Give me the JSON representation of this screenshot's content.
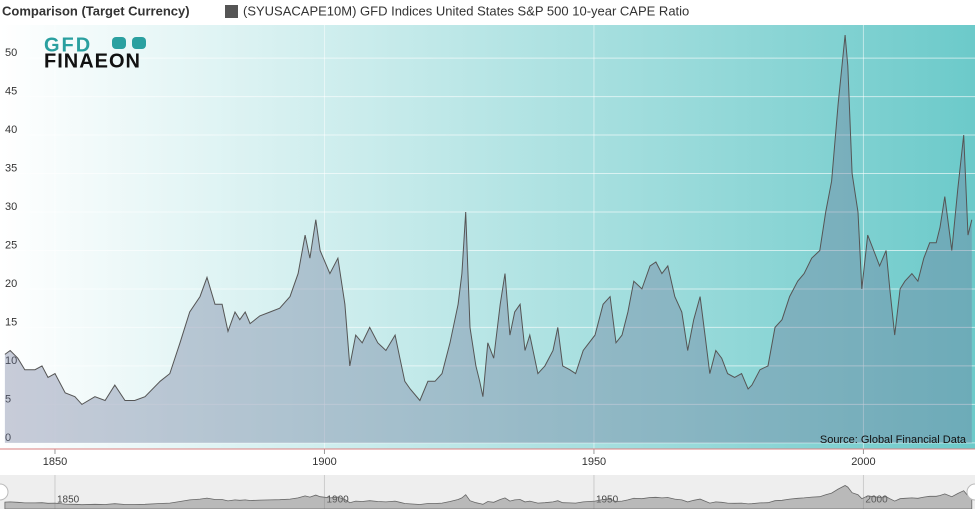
{
  "chart_data": {
    "type": "area",
    "title": "Comparison (Target Currency)",
    "source": "Source: Global Financial Data",
    "logo_top": "GFD",
    "logo_bottom": "FINAEON",
    "x": [
      1840.7,
      1841.7,
      1843.1,
      1844.4,
      1846.3,
      1847.6,
      1848.7,
      1850.0,
      1851.9,
      1853.7,
      1855.0,
      1857.4,
      1859.3,
      1861.1,
      1863.0,
      1864.8,
      1866.7,
      1869.5,
      1871.3,
      1873.2,
      1875.0,
      1876.9,
      1878.2,
      1879.7,
      1881.0,
      1882.1,
      1883.4,
      1884.3,
      1885.3,
      1886.2,
      1888.0,
      1889.9,
      1891.7,
      1893.6,
      1895.1,
      1896.4,
      1897.3,
      1898.4,
      1899.2,
      1901.0,
      1902.5,
      1903.8,
      1904.7,
      1905.8,
      1907.0,
      1908.4,
      1909.9,
      1911.4,
      1913.1,
      1914.0,
      1914.9,
      1915.9,
      1917.7,
      1919.2,
      1920.5,
      1921.8,
      1923.3,
      1924.8,
      1925.5,
      1926.2,
      1927.0,
      1928.1,
      1928.8,
      1929.4,
      1930.3,
      1931.4,
      1932.6,
      1933.5,
      1934.4,
      1935.3,
      1936.3,
      1937.2,
      1938.1,
      1939.6,
      1940.9,
      1942.4,
      1943.3,
      1944.2,
      1945.5,
      1946.6,
      1948.0,
      1950.2,
      1951.7,
      1953.0,
      1954.1,
      1955.2,
      1956.3,
      1957.4,
      1958.9,
      1960.4,
      1961.5,
      1962.6,
      1963.7,
      1965.0,
      1966.3,
      1967.4,
      1968.5,
      1969.7,
      1970.6,
      1971.5,
      1972.6,
      1973.7,
      1974.8,
      1976.1,
      1977.4,
      1978.6,
      1979.3,
      1980.8,
      1982.3,
      1983.6,
      1984.9,
      1986.3,
      1987.8,
      1989.0,
      1990.4,
      1991.9,
      1993.0,
      1994.1,
      1995.3,
      1996.6,
      1997.1,
      1997.9,
      1999.0,
      1999.7,
      2000.8,
      2001.9,
      2003.0,
      2004.2,
      2004.9,
      2005.8,
      2006.8,
      2007.7,
      2009.0,
      2010.1,
      2011.2,
      2012.3,
      2013.5,
      2014.2,
      2015.1,
      2016.4,
      2017.5,
      2018.6,
      2019.4,
      2020.1
    ],
    "series": [
      {
        "name": "(SYUSACAPE10M) GFD Indices United States S&P 500 10-year CAPE Ratio",
        "color": "#555555",
        "values": [
          11.5,
          12,
          11,
          9.5,
          9.5,
          10,
          8.5,
          9,
          6.5,
          6,
          5,
          6,
          5.5,
          7.5,
          5.5,
          5.5,
          6,
          8,
          9,
          13,
          17,
          19,
          21.5,
          18,
          18,
          14.5,
          17,
          16,
          17,
          15.5,
          16.5,
          17,
          17.5,
          19,
          22,
          27,
          24,
          29,
          25,
          22,
          24,
          18,
          10,
          14,
          13,
          15,
          13,
          12,
          14,
          11,
          8,
          7,
          5.5,
          8,
          8,
          9,
          13,
          18,
          22,
          30,
          15,
          10,
          8,
          6,
          13,
          11,
          18,
          22,
          14,
          17,
          18,
          12,
          14,
          9,
          10,
          12,
          15,
          10,
          9.5,
          9,
          12,
          14,
          18,
          19,
          13,
          14,
          17,
          21,
          20,
          23,
          23.5,
          22,
          23,
          19,
          17,
          12,
          16,
          19,
          14,
          9,
          12,
          11,
          9,
          8.5,
          9,
          7,
          7.5,
          9.5,
          10,
          15,
          16,
          19,
          21,
          22,
          24,
          25,
          30,
          34,
          44,
          53,
          49,
          35,
          30,
          20,
          27,
          25,
          23,
          25,
          20,
          14,
          20,
          21,
          22,
          21,
          24,
          26,
          26,
          28,
          32,
          25,
          33,
          40,
          27,
          29
        ]
      }
    ],
    "xlim": [
      1839.8,
      2020.7
    ],
    "xticks": [
      1850,
      1900,
      1950,
      2000
    ],
    "ylim": [
      -0.8,
      54.3
    ],
    "yticks": [
      0,
      5,
      10,
      15,
      20,
      25,
      30,
      35,
      40,
      45,
      50
    ],
    "grid": true
  }
}
